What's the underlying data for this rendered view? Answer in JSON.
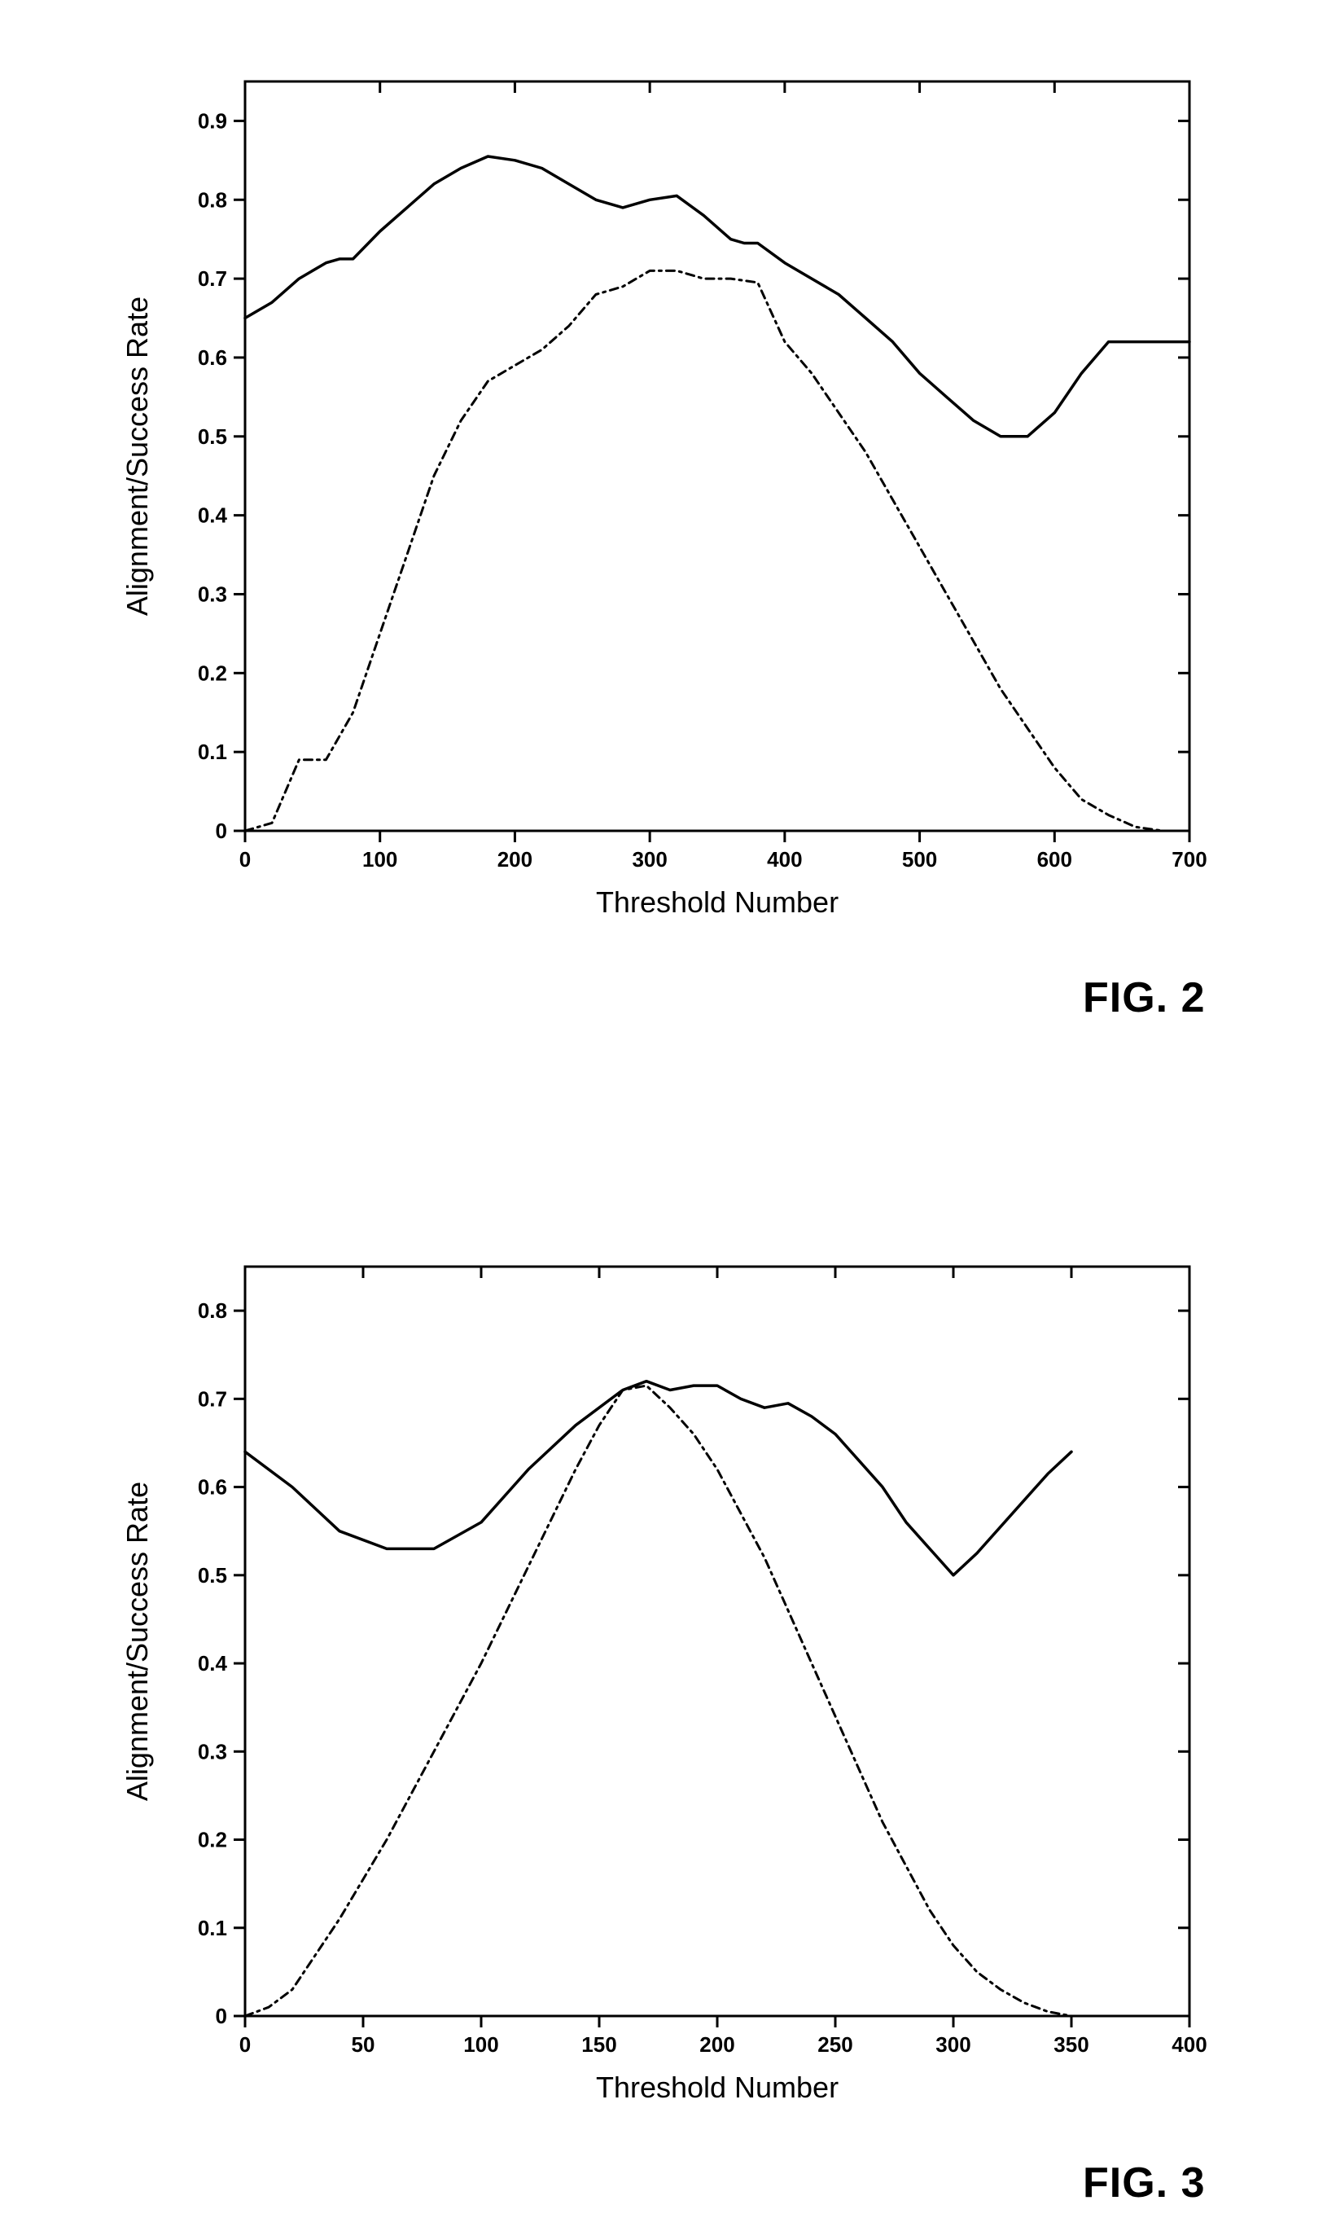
{
  "figure2": {
    "type": "line",
    "caption": "FIG. 2",
    "xlabel": "Threshold Number",
    "ylabel": "Alignment/Success Rate",
    "xlim": [
      0,
      700
    ],
    "ylim": [
      0,
      0.95
    ],
    "xtick_step": 100,
    "xtick_labels": [
      "0",
      "100",
      "200",
      "300",
      "400",
      "500",
      "600",
      "700"
    ],
    "ytick_step": 0.1,
    "ytick_labels": [
      "0",
      "0.1",
      "0.2",
      "0.3",
      "0.4",
      "0.5",
      "0.6",
      "0.7",
      "0.8",
      "0.9"
    ],
    "background_color": "#ffffff",
    "axis_color": "#000000",
    "tick_fontsize": 26,
    "label_fontsize": 36,
    "caption_fontsize": 52,
    "line_width_solid": 3.5,
    "line_width_dashed": 3,
    "solid_color": "#000000",
    "dashed_color": "#000000",
    "dash_pattern": "10,6,3,6",
    "series_solid": [
      [
        0,
        0.65
      ],
      [
        20,
        0.67
      ],
      [
        40,
        0.7
      ],
      [
        60,
        0.72
      ],
      [
        70,
        0.725
      ],
      [
        80,
        0.725
      ],
      [
        100,
        0.76
      ],
      [
        120,
        0.79
      ],
      [
        140,
        0.82
      ],
      [
        160,
        0.84
      ],
      [
        180,
        0.855
      ],
      [
        200,
        0.85
      ],
      [
        220,
        0.84
      ],
      [
        240,
        0.82
      ],
      [
        260,
        0.8
      ],
      [
        280,
        0.79
      ],
      [
        300,
        0.8
      ],
      [
        320,
        0.805
      ],
      [
        340,
        0.78
      ],
      [
        360,
        0.75
      ],
      [
        370,
        0.745
      ],
      [
        380,
        0.745
      ],
      [
        400,
        0.72
      ],
      [
        420,
        0.7
      ],
      [
        440,
        0.68
      ],
      [
        460,
        0.65
      ],
      [
        480,
        0.62
      ],
      [
        500,
        0.58
      ],
      [
        520,
        0.55
      ],
      [
        540,
        0.52
      ],
      [
        560,
        0.5
      ],
      [
        580,
        0.5
      ],
      [
        600,
        0.53
      ],
      [
        620,
        0.58
      ],
      [
        640,
        0.62
      ],
      [
        660,
        0.62
      ],
      [
        680,
        0.62
      ],
      [
        700,
        0.62
      ]
    ],
    "series_dashed": [
      [
        0,
        0.0
      ],
      [
        20,
        0.01
      ],
      [
        30,
        0.05
      ],
      [
        40,
        0.09
      ],
      [
        60,
        0.09
      ],
      [
        80,
        0.15
      ],
      [
        100,
        0.25
      ],
      [
        120,
        0.35
      ],
      [
        140,
        0.45
      ],
      [
        160,
        0.52
      ],
      [
        180,
        0.57
      ],
      [
        200,
        0.59
      ],
      [
        220,
        0.61
      ],
      [
        240,
        0.64
      ],
      [
        260,
        0.68
      ],
      [
        280,
        0.69
      ],
      [
        300,
        0.71
      ],
      [
        320,
        0.71
      ],
      [
        340,
        0.7
      ],
      [
        360,
        0.7
      ],
      [
        380,
        0.695
      ],
      [
        400,
        0.62
      ],
      [
        420,
        0.58
      ],
      [
        440,
        0.53
      ],
      [
        460,
        0.48
      ],
      [
        480,
        0.42
      ],
      [
        500,
        0.36
      ],
      [
        520,
        0.3
      ],
      [
        540,
        0.24
      ],
      [
        560,
        0.18
      ],
      [
        580,
        0.13
      ],
      [
        600,
        0.08
      ],
      [
        620,
        0.04
      ],
      [
        640,
        0.02
      ],
      [
        660,
        0.005
      ],
      [
        680,
        0.0
      ],
      [
        700,
        0.0
      ]
    ]
  },
  "figure3": {
    "type": "line",
    "caption": "FIG. 3",
    "xlabel": "Threshold Number",
    "ylabel": "Alignment/Success Rate",
    "xlim": [
      0,
      400
    ],
    "ylim": [
      0,
      0.85
    ],
    "xtick_step": 50,
    "xtick_labels": [
      "0",
      "50",
      "100",
      "150",
      "200",
      "250",
      "300",
      "350",
      "400"
    ],
    "ytick_step": 0.1,
    "ytick_labels": [
      "0",
      "0.1",
      "0.2",
      "0.3",
      "0.4",
      "0.5",
      "0.6",
      "0.7",
      "0.8"
    ],
    "background_color": "#ffffff",
    "axis_color": "#000000",
    "tick_fontsize": 26,
    "label_fontsize": 36,
    "caption_fontsize": 52,
    "line_width_solid": 3.5,
    "line_width_dashed": 3,
    "solid_color": "#000000",
    "dashed_color": "#000000",
    "dash_pattern": "10,6,3,6",
    "series_solid": [
      [
        0,
        0.64
      ],
      [
        20,
        0.6
      ],
      [
        40,
        0.55
      ],
      [
        60,
        0.53
      ],
      [
        80,
        0.53
      ],
      [
        100,
        0.56
      ],
      [
        120,
        0.62
      ],
      [
        140,
        0.67
      ],
      [
        160,
        0.71
      ],
      [
        170,
        0.72
      ],
      [
        180,
        0.71
      ],
      [
        190,
        0.715
      ],
      [
        200,
        0.715
      ],
      [
        210,
        0.7
      ],
      [
        220,
        0.69
      ],
      [
        230,
        0.695
      ],
      [
        240,
        0.68
      ],
      [
        250,
        0.66
      ],
      [
        260,
        0.63
      ],
      [
        270,
        0.6
      ],
      [
        280,
        0.56
      ],
      [
        290,
        0.53
      ],
      [
        300,
        0.5
      ],
      [
        310,
        0.525
      ],
      [
        320,
        0.555
      ],
      [
        330,
        0.585
      ],
      [
        340,
        0.615
      ],
      [
        350,
        0.64
      ]
    ],
    "series_dashed": [
      [
        0,
        0.0
      ],
      [
        10,
        0.01
      ],
      [
        20,
        0.03
      ],
      [
        40,
        0.11
      ],
      [
        60,
        0.2
      ],
      [
        80,
        0.3
      ],
      [
        100,
        0.4
      ],
      [
        120,
        0.51
      ],
      [
        140,
        0.62
      ],
      [
        150,
        0.67
      ],
      [
        160,
        0.71
      ],
      [
        170,
        0.715
      ],
      [
        180,
        0.69
      ],
      [
        190,
        0.66
      ],
      [
        200,
        0.62
      ],
      [
        210,
        0.57
      ],
      [
        220,
        0.52
      ],
      [
        230,
        0.46
      ],
      [
        240,
        0.4
      ],
      [
        250,
        0.34
      ],
      [
        260,
        0.28
      ],
      [
        270,
        0.22
      ],
      [
        280,
        0.17
      ],
      [
        290,
        0.12
      ],
      [
        300,
        0.08
      ],
      [
        310,
        0.05
      ],
      [
        320,
        0.03
      ],
      [
        330,
        0.015
      ],
      [
        340,
        0.005
      ],
      [
        350,
        0.0
      ],
      [
        360,
        0.0
      ]
    ]
  }
}
